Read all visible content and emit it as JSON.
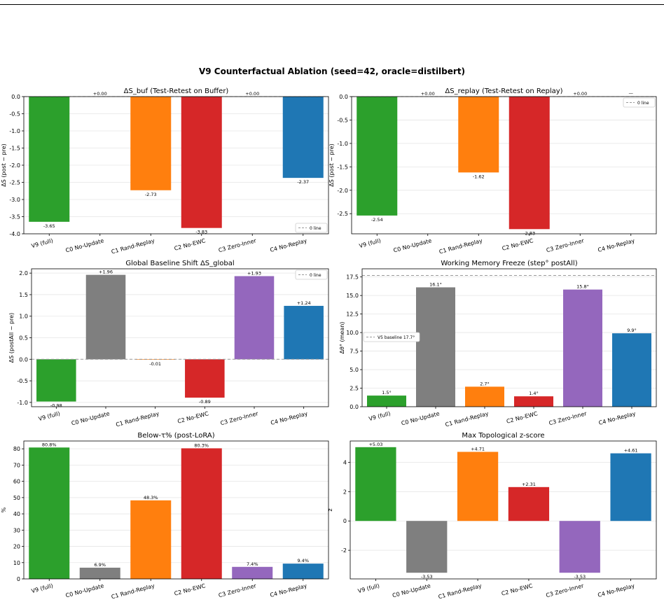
{
  "figure_title": "V9 Counterfactual Ablation  (seed=42, oracle=distilbert)",
  "colors": {
    "green": "#2ca02c",
    "gray": "#7f7f7f",
    "orange": "#ff7f0e",
    "red": "#d62728",
    "purple": "#9467bd",
    "blue": "#1f77b4"
  },
  "chart_data": [
    {
      "type": "bar",
      "title": "ΔS_buf  (Test-Retest on Buffer)",
      "ylabel": "ΔS (post − pre)",
      "categories": [
        "V9 (full)",
        "C0 No-Update",
        "C1 Rand-Replay",
        "C2 No-EWC",
        "C3 Zero-Inner",
        "C4 No-Replay"
      ],
      "values": [
        -3.65,
        0.0,
        -2.73,
        -3.83,
        0.0,
        -2.37
      ],
      "labels": [
        "-3.65",
        "+0.00",
        "-2.73",
        "-3.83",
        "+0.00",
        "-2.37"
      ],
      "bar_colors": [
        "#2ca02c",
        "#7f7f7f",
        "#ff7f0e",
        "#d62728",
        "#9467bd",
        "#1f77b4"
      ],
      "ylim": [
        -4.0,
        0.0
      ],
      "yticks": [
        0.0,
        -0.5,
        -1.0,
        -1.5,
        -2.0,
        -2.5,
        -3.0,
        -3.5,
        -4.0
      ],
      "reference_line": {
        "y": 0,
        "label": "0 line"
      },
      "legend": "lower-right",
      "grid": true
    },
    {
      "type": "bar",
      "title": "ΔS_replay  (Test-Retest on Replay)",
      "ylabel": "ΔS (post − pre)",
      "categories": [
        "V9 (full)",
        "C0 No-Update",
        "C1 Rand-Replay",
        "C2 No-EWC",
        "C3 Zero-Inner",
        "C4 No-Replay"
      ],
      "values": [
        -2.54,
        0.0,
        -1.62,
        -2.83,
        0.0,
        null
      ],
      "labels": [
        "-2.54",
        "+0.00",
        "-1.62",
        "-2.83",
        "+0.00",
        "—"
      ],
      "bar_colors": [
        "#2ca02c",
        "#7f7f7f",
        "#ff7f0e",
        "#d62728",
        "#9467bd",
        "#1f77b4"
      ],
      "ylim": [
        -2.93,
        0.0
      ],
      "yticks": [
        0.0,
        -0.5,
        -1.0,
        -1.5,
        -2.0,
        -2.5
      ],
      "reference_line": {
        "y": 0,
        "label": "0 line"
      },
      "legend": "upper-right",
      "grid": true
    },
    {
      "type": "bar",
      "title": "Global Baseline Shift  ΔS_global",
      "ylabel": "ΔS (postAll − pre)",
      "categories": [
        "V9 (full)",
        "C0 No-Update",
        "C1 Rand-Replay",
        "C2 No-EWC",
        "C3 Zero-Inner",
        "C4 No-Replay"
      ],
      "values": [
        -0.98,
        1.96,
        -0.01,
        -0.89,
        1.93,
        1.24
      ],
      "labels": [
        "-0.98",
        "+1.96",
        "-0.01",
        "-0.89",
        "+1.93",
        "+1.24"
      ],
      "bar_colors": [
        "#2ca02c",
        "#7f7f7f",
        "#ff7f0e",
        "#d62728",
        "#9467bd",
        "#1f77b4"
      ],
      "ylim": [
        -1.1,
        2.1
      ],
      "yticks": [
        2.0,
        1.5,
        1.0,
        0.5,
        0.0,
        -0.5,
        -1.0
      ],
      "reference_line": {
        "y": 0,
        "label": "0 line"
      },
      "legend": "upper-right",
      "grid": true
    },
    {
      "type": "bar",
      "title": "Working Memory Freeze  (step° postAll)",
      "ylabel": "Δθ° (mean)",
      "categories": [
        "V9 (full)",
        "C0 No-Update",
        "C1 Rand-Replay",
        "C2 No-EWC",
        "C3 Zero-Inner",
        "C4 No-Replay"
      ],
      "values": [
        1.5,
        16.1,
        2.7,
        1.4,
        15.8,
        9.9
      ],
      "labels": [
        "1.5°",
        "16.1°",
        "2.7°",
        "1.4°",
        "15.8°",
        "9.9°"
      ],
      "bar_colors": [
        "#2ca02c",
        "#7f7f7f",
        "#ff7f0e",
        "#d62728",
        "#9467bd",
        "#1f77b4"
      ],
      "ylim": [
        0,
        18.6
      ],
      "yticks": [
        0.0,
        2.5,
        5.0,
        7.5,
        10.0,
        12.5,
        15.0,
        17.5
      ],
      "reference_line": {
        "y": 17.7,
        "label": "V5 baseline 17.7°"
      },
      "legend": "center-left",
      "grid": true
    },
    {
      "type": "bar",
      "title": "Below-τ% (post-LoRA)",
      "ylabel": "%",
      "categories": [
        "V9 (full)",
        "C0 No-Update",
        "C1 Rand-Replay",
        "C2 No-EWC",
        "C3 Zero-Inner",
        "C4 No-Replay"
      ],
      "values": [
        80.8,
        6.9,
        48.3,
        80.3,
        7.4,
        9.4
      ],
      "labels": [
        "80.8%",
        "6.9%",
        "48.3%",
        "80.3%",
        "7.4%",
        "9.4%"
      ],
      "bar_colors": [
        "#2ca02c",
        "#7f7f7f",
        "#ff7f0e",
        "#d62728",
        "#9467bd",
        "#1f77b4"
      ],
      "ylim": [
        0,
        84.8
      ],
      "yticks": [
        0,
        10,
        20,
        30,
        40,
        50,
        60,
        70,
        80
      ],
      "grid": true
    },
    {
      "type": "bar",
      "title": "Max Topological z-score",
      "ylabel": "z",
      "categories": [
        "V9 (full)",
        "C0 No-Update",
        "C1 Rand-Replay",
        "C2 No-EWC",
        "C3 Zero-Inner",
        "C4 No-Replay"
      ],
      "values": [
        5.03,
        -3.53,
        4.71,
        2.31,
        -3.53,
        4.61
      ],
      "labels": [
        "+5.03",
        "-3.53",
        "+4.71",
        "+2.31",
        "-3.53",
        "+4.61"
      ],
      "bar_colors": [
        "#2ca02c",
        "#7f7f7f",
        "#ff7f0e",
        "#d62728",
        "#9467bd",
        "#1f77b4"
      ],
      "ylim": [
        -3.95,
        5.45
      ],
      "yticks": [
        4,
        2,
        0,
        -2
      ],
      "grid": true
    }
  ]
}
